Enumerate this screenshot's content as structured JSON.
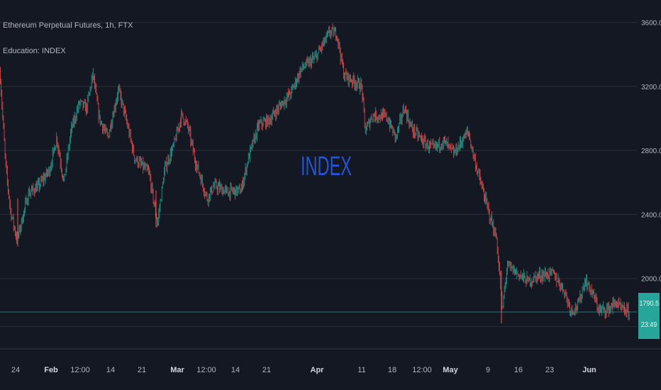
{
  "header": {
    "title": "Ethereum Perpetual Futures, 1h, FTX",
    "indicator": "Education: INDEX"
  },
  "watermark": "INDEX",
  "price_badge": {
    "price": "1790.5",
    "countdown": "23:49"
  },
  "colors": {
    "background": "#141823",
    "grid": "#2a2e39",
    "up": "#26a69a",
    "down": "#ef5350",
    "watermark": "#2962ff",
    "text": "#b2b5be"
  },
  "chart_data": {
    "type": "candlestick",
    "title": "Ethereum Perpetual Futures, 1h, FTX",
    "ylim": [
      1560,
      3740
    ],
    "y_ticks": [
      "3600.0",
      "3200.0",
      "2800.0",
      "2400.0",
      "2000.0"
    ],
    "x_ticks": [
      "24",
      "Feb",
      "12:00",
      "14",
      "21",
      "Mar",
      "12:00",
      "14",
      "21",
      "Apr",
      "11",
      "18",
      "12:00",
      "May",
      "9",
      "16",
      "23",
      "Jun"
    ],
    "last_price": 1790.5,
    "price_anchors": [
      [
        0,
        3290
      ],
      [
        8,
        2700
      ],
      [
        15,
        2420
      ],
      [
        24,
        2240
      ],
      [
        40,
        2530
      ],
      [
        55,
        2580
      ],
      [
        70,
        2680
      ],
      [
        80,
        2880
      ],
      [
        90,
        2600
      ],
      [
        100,
        2920
      ],
      [
        112,
        3100
      ],
      [
        122,
        3060
      ],
      [
        131,
        3280
      ],
      [
        140,
        3000
      ],
      [
        152,
        2880
      ],
      [
        167,
        3180
      ],
      [
        178,
        2990
      ],
      [
        190,
        2750
      ],
      [
        210,
        2660
      ],
      [
        222,
        2340
      ],
      [
        232,
        2680
      ],
      [
        245,
        2830
      ],
      [
        256,
        3020
      ],
      [
        265,
        2950
      ],
      [
        275,
        2740
      ],
      [
        292,
        2500
      ],
      [
        302,
        2580
      ],
      [
        320,
        2540
      ],
      [
        340,
        2550
      ],
      [
        350,
        2750
      ],
      [
        365,
        2960
      ],
      [
        380,
        2990
      ],
      [
        395,
        3080
      ],
      [
        410,
        3160
      ],
      [
        425,
        3310
      ],
      [
        445,
        3380
      ],
      [
        450,
        3420
      ],
      [
        465,
        3540
      ],
      [
        475,
        3530
      ],
      [
        485,
        3270
      ],
      [
        500,
        3230
      ],
      [
        510,
        3200
      ],
      [
        515,
        2920
      ],
      [
        525,
        3020
      ],
      [
        545,
        3010
      ],
      [
        558,
        2880
      ],
      [
        570,
        3070
      ],
      [
        580,
        2940
      ],
      [
        600,
        2840
      ],
      [
        612,
        2810
      ],
      [
        625,
        2860
      ],
      [
        640,
        2780
      ],
      [
        660,
        2920
      ],
      [
        668,
        2760
      ],
      [
        680,
        2560
      ],
      [
        690,
        2400
      ],
      [
        700,
        2250
      ],
      [
        705,
        1990
      ],
      [
        708,
        1790
      ],
      [
        715,
        2080
      ],
      [
        730,
        2030
      ],
      [
        745,
        1980
      ],
      [
        760,
        2020
      ],
      [
        780,
        2030
      ],
      [
        795,
        1930
      ],
      [
        805,
        1800
      ],
      [
        815,
        1830
      ],
      [
        825,
        1990
      ],
      [
        835,
        1910
      ],
      [
        845,
        1800
      ],
      [
        858,
        1810
      ],
      [
        868,
        1850
      ],
      [
        878,
        1800
      ],
      [
        888,
        1790
      ]
    ]
  }
}
